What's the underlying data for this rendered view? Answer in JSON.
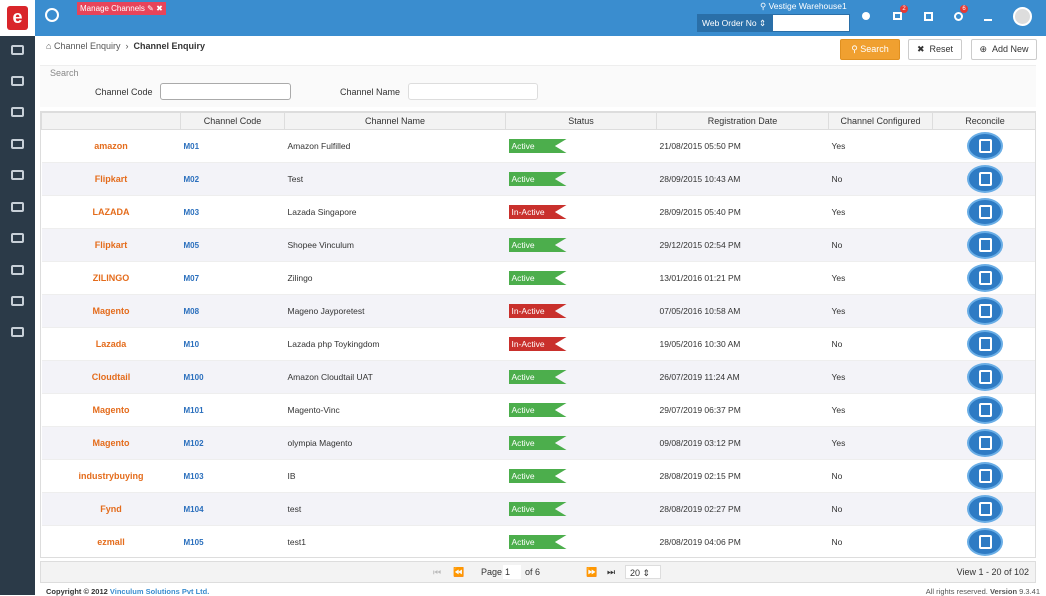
{
  "header": {
    "tab": "Manage Channels",
    "warehouse": "Vestige Warehouse1",
    "search_type": "Web Order No",
    "badges": [
      "2",
      "6"
    ]
  },
  "breadcrumb": [
    "Channel Enquiry",
    "Channel Enquiry"
  ],
  "buttons": [
    "Search",
    "Reset",
    "Add New"
  ],
  "search": {
    "title": "Search",
    "fields": [
      "Channel Code",
      "Channel Name"
    ]
  },
  "table": {
    "columns": [
      "Channel Code",
      "Channel Name",
      "Status",
      "Registration Date",
      "Channel Configured",
      "Reconcile"
    ],
    "rows": [
      {
        "logo": "amazon",
        "code": "M01",
        "name": "Amazon Fulfilled",
        "status": "Active",
        "status_color": "#4cae4c",
        "date": "21/08/2015 05:50 PM",
        "configured": "Yes"
      },
      {
        "logo": "Flipkart",
        "code": "M02",
        "name": "Test",
        "status": "Active",
        "status_color": "#4cae4c",
        "date": "28/09/2015 10:43 AM",
        "configured": "No"
      },
      {
        "logo": "LAZADA",
        "code": "M03",
        "name": "Lazada Singapore",
        "status": "In-Active",
        "status_color": "#c9302c",
        "date": "28/09/2015 05:40 PM",
        "configured": "Yes"
      },
      {
        "logo": "Flipkart",
        "code": "M05",
        "name": "Shopee Vinculum",
        "status": "Active",
        "status_color": "#4cae4c",
        "date": "29/12/2015 02:54 PM",
        "configured": "No"
      },
      {
        "logo": "ZILINGO",
        "code": "M07",
        "name": "Zilingo",
        "status": "Active",
        "status_color": "#4cae4c",
        "date": "13/01/2016 01:21 PM",
        "configured": "Yes"
      },
      {
        "logo": "Magento",
        "code": "M08",
        "name": "Mageno Jayporetest",
        "status": "In-Active",
        "status_color": "#c9302c",
        "date": "07/05/2016 10:58 AM",
        "configured": "Yes"
      },
      {
        "logo": "Lazada",
        "code": "M10",
        "name": "Lazada php Toykingdom",
        "status": "In-Active",
        "status_color": "#c9302c",
        "date": "19/05/2016 10:30 AM",
        "configured": "No"
      },
      {
        "logo": "Cloudtail",
        "code": "M100",
        "name": "Amazon Cloudtail UAT",
        "status": "Active",
        "status_color": "#4cae4c",
        "date": "26/07/2019 11:24 AM",
        "configured": "Yes"
      },
      {
        "logo": "Magento",
        "code": "M101",
        "name": "Magento-Vinc",
        "status": "Active",
        "status_color": "#4cae4c",
        "date": "29/07/2019 06:37 PM",
        "configured": "Yes"
      },
      {
        "logo": "Magento",
        "code": "M102",
        "name": "olympia Magento",
        "status": "Active",
        "status_color": "#4cae4c",
        "date": "09/08/2019 03:12 PM",
        "configured": "Yes"
      },
      {
        "logo": "industrybuying",
        "code": "M103",
        "name": "IB",
        "status": "Active",
        "status_color": "#4cae4c",
        "date": "28/08/2019 02:15 PM",
        "configured": "No"
      },
      {
        "logo": "Fynd",
        "code": "M104",
        "name": "test",
        "status": "Active",
        "status_color": "#4cae4c",
        "date": "28/08/2019 02:27 PM",
        "configured": "No"
      },
      {
        "logo": "ezmall",
        "code": "M105",
        "name": "test1",
        "status": "Active",
        "status_color": "#4cae4c",
        "date": "28/08/2019 04:06 PM",
        "configured": "No"
      }
    ]
  },
  "pagination": {
    "page_label": "Page",
    "page": "1",
    "of": "of 6",
    "size": "20",
    "view": "View 1 - 20 of 102"
  },
  "footer": {
    "copyright": "Copyright © 2012",
    "company": "Vinculum Solutions Pvt Ltd.",
    "rights": "All rights reserved.",
    "version_label": "Version",
    "version": "9.3.41"
  }
}
